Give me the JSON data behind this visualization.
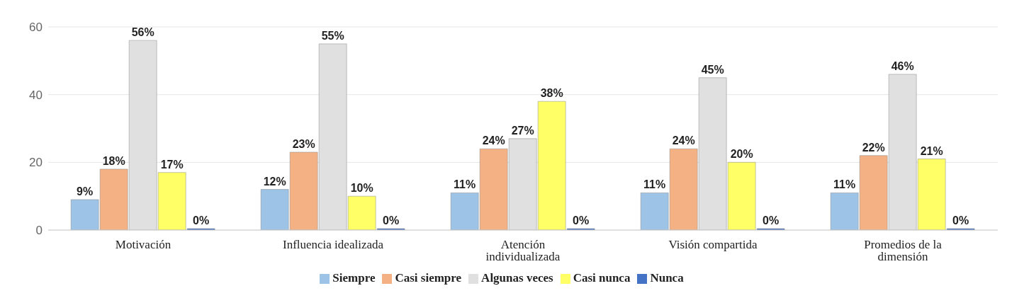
{
  "chart_data": {
    "type": "bar",
    "categories": [
      "Motivación",
      "Influencia idealizada",
      "Atención individualizada",
      "Visión compartida",
      "Promedios de la dimensión"
    ],
    "series": [
      {
        "name": "Siempre",
        "color": "#9dc3e6",
        "values": [
          9,
          12,
          11,
          11,
          11
        ],
        "value_labels": [
          "9%",
          "12%",
          "11%",
          "11%",
          "11%"
        ]
      },
      {
        "name": "Casi siempre",
        "color": "#f4b183",
        "values": [
          18,
          23,
          24,
          24,
          22
        ],
        "value_labels": [
          "18%",
          "23%",
          "24%",
          "24%",
          "22%"
        ]
      },
      {
        "name": "Algunas veces",
        "color": "#e0e0e0",
        "values": [
          56,
          55,
          27,
          45,
          46
        ],
        "value_labels": [
          "56%",
          "55%",
          "27%",
          "45%",
          "46%"
        ]
      },
      {
        "name": "Casi nunca",
        "color": "#ffff66",
        "values": [
          17,
          10,
          38,
          20,
          21
        ],
        "value_labels": [
          "17%",
          "10%",
          "38%",
          "20%",
          "21%"
        ]
      },
      {
        "name": "Nunca",
        "color": "#4472c4",
        "values": [
          0,
          0,
          0,
          0,
          0
        ],
        "value_labels": [
          "0%",
          "0%",
          "0%",
          "0%",
          "0%"
        ]
      }
    ],
    "ylim": [
      0,
      60
    ],
    "yticks": [
      0,
      20,
      40,
      60
    ],
    "grid": "y",
    "legend": "bottom"
  }
}
